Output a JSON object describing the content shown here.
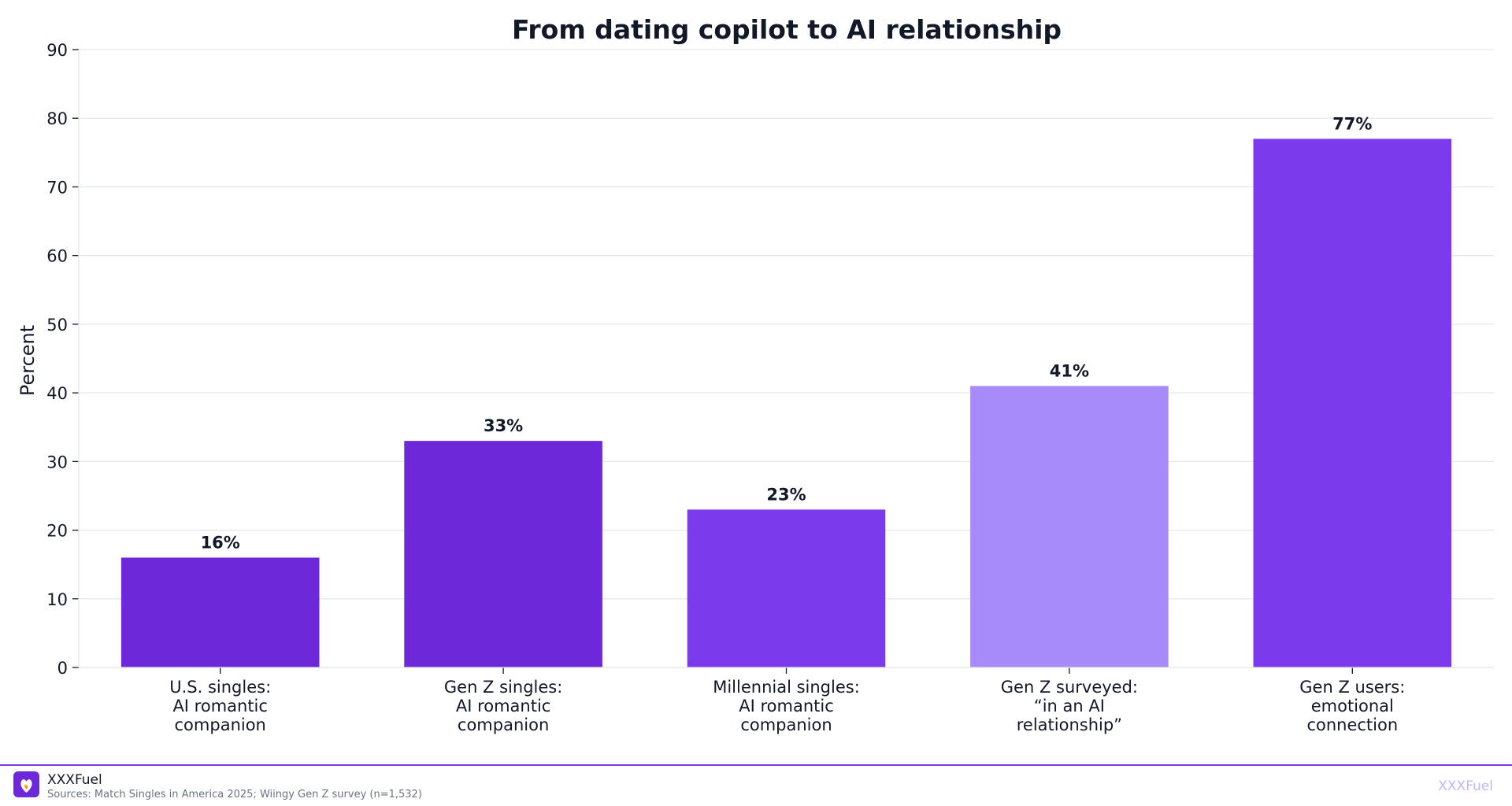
{
  "chart_data": {
    "type": "bar",
    "title": "From dating copilot to AI relationship",
    "xlabel": "",
    "ylabel": "Percent",
    "ylim": [
      0,
      90
    ],
    "yticks": [
      0,
      10,
      20,
      30,
      40,
      50,
      60,
      70,
      80,
      90
    ],
    "grid": true,
    "categories": [
      [
        "U.S. singles:",
        "AI romantic",
        "companion"
      ],
      [
        "Gen Z singles:",
        "AI romantic",
        "companion"
      ],
      [
        "Millennial singles:",
        "AI romantic",
        "companion"
      ],
      [
        "Gen Z surveyed:",
        "“in an AI",
        "relationship”"
      ],
      [
        "Gen Z users:",
        "emotional",
        "connection"
      ]
    ],
    "values": [
      16,
      33,
      23,
      41,
      77
    ],
    "value_labels": [
      "16%",
      "33%",
      "23%",
      "41%",
      "77%"
    ],
    "colors": [
      "#6d28d9",
      "#6d28d9",
      "#7c3aed",
      "#a78bfa",
      "#7c3aed"
    ]
  },
  "footer": {
    "brand": "XXXFuel",
    "source": "Sources: Match Singles in America 2025; Wiingy Gen Z survey (n=1,532)",
    "watermark": "XXXFuel",
    "logo_icon": "heart-flame-icon",
    "accent_color": "#7c3aed"
  }
}
